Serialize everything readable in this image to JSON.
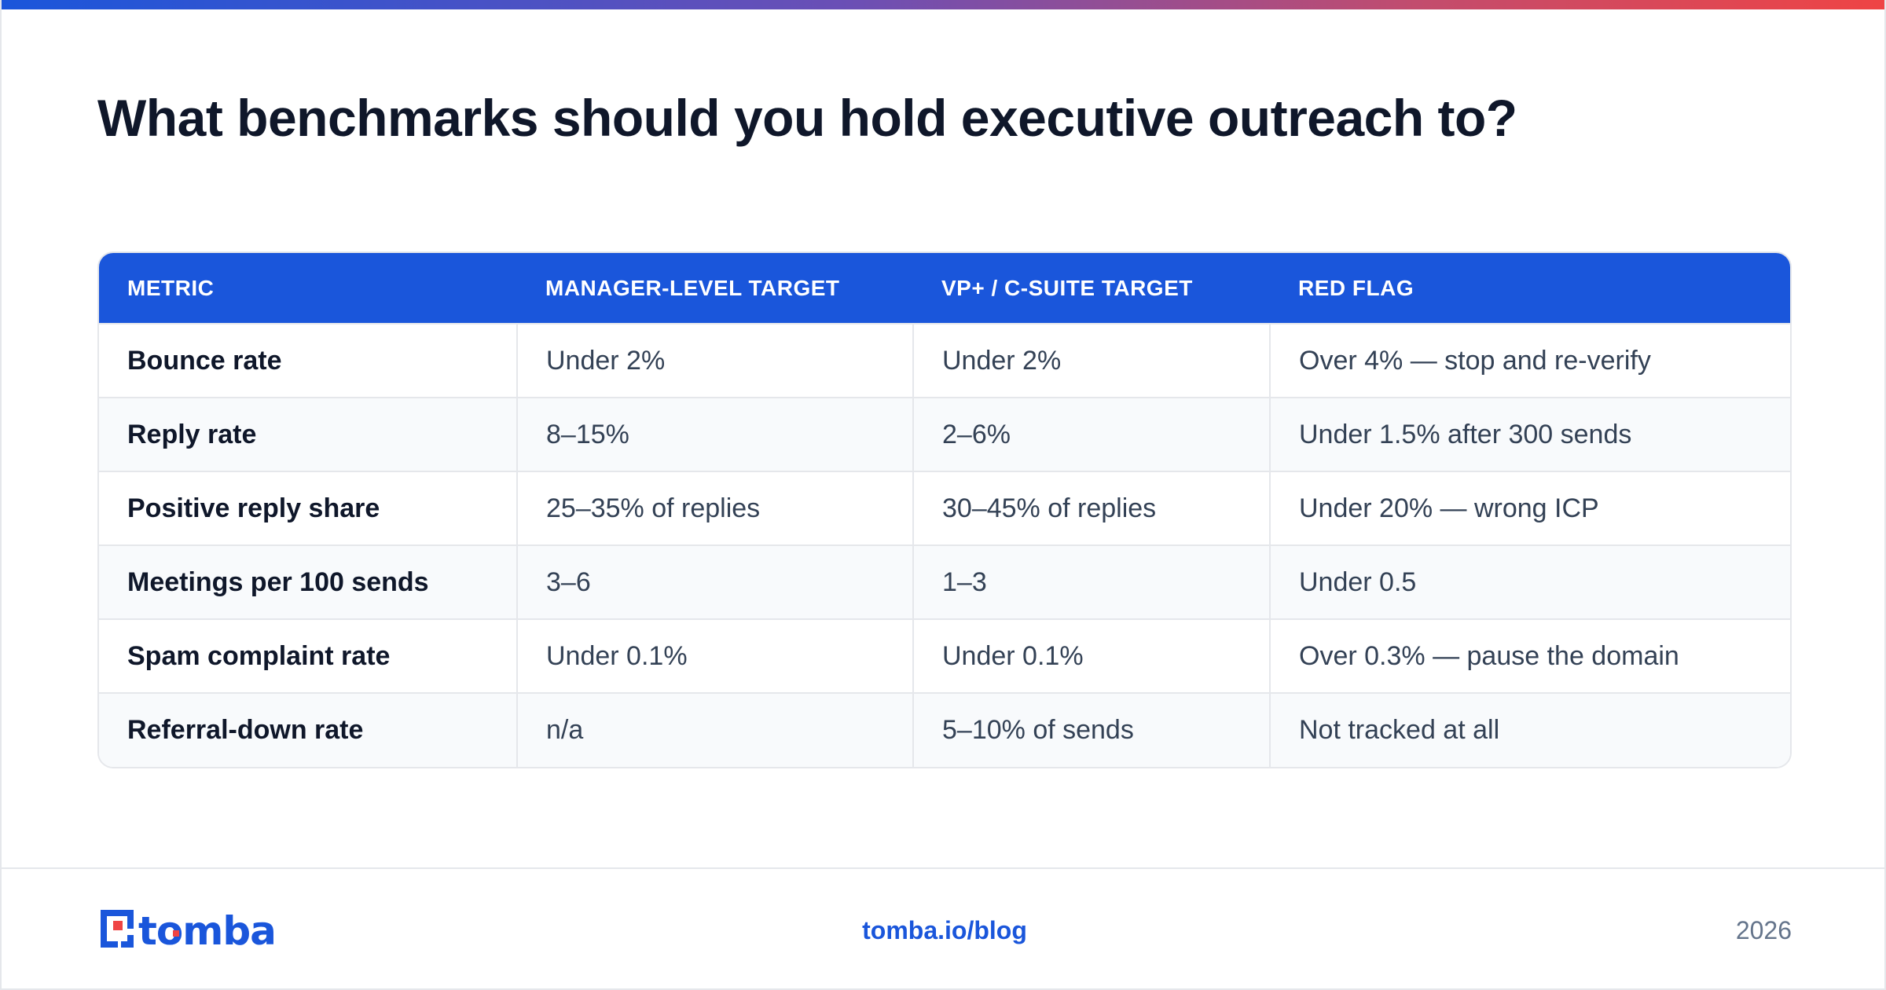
{
  "title": "What benchmarks should you hold executive outreach to?",
  "table": {
    "headers": [
      "METRIC",
      "MANAGER-LEVEL TARGET",
      "VP+ / C-SUITE TARGET",
      "RED FLAG"
    ],
    "rows": [
      [
        "Bounce rate",
        "Under 2%",
        "Under 2%",
        "Over 4% — stop and re-verify"
      ],
      [
        "Reply rate",
        "8–15%",
        "2–6%",
        "Under 1.5% after 300 sends"
      ],
      [
        "Positive reply share",
        "25–35% of replies",
        "30–45% of replies",
        "Under 20% — wrong ICP"
      ],
      [
        "Meetings per 100 sends",
        "3–6",
        "1–3",
        "Under 0.5"
      ],
      [
        "Spam complaint rate",
        "Under 0.1%",
        "Under 0.1%",
        "Over 0.3% — pause the domain"
      ],
      [
        "Referral-down rate",
        "n/a",
        "5–10% of sends",
        "Not tracked at all"
      ]
    ]
  },
  "footer": {
    "logo": "tomba",
    "link": "tomba.io/blog",
    "year": "2026"
  },
  "colors": {
    "brand_blue": "#1a56db",
    "brand_red": "#ef4444",
    "title": "#0f172a"
  }
}
